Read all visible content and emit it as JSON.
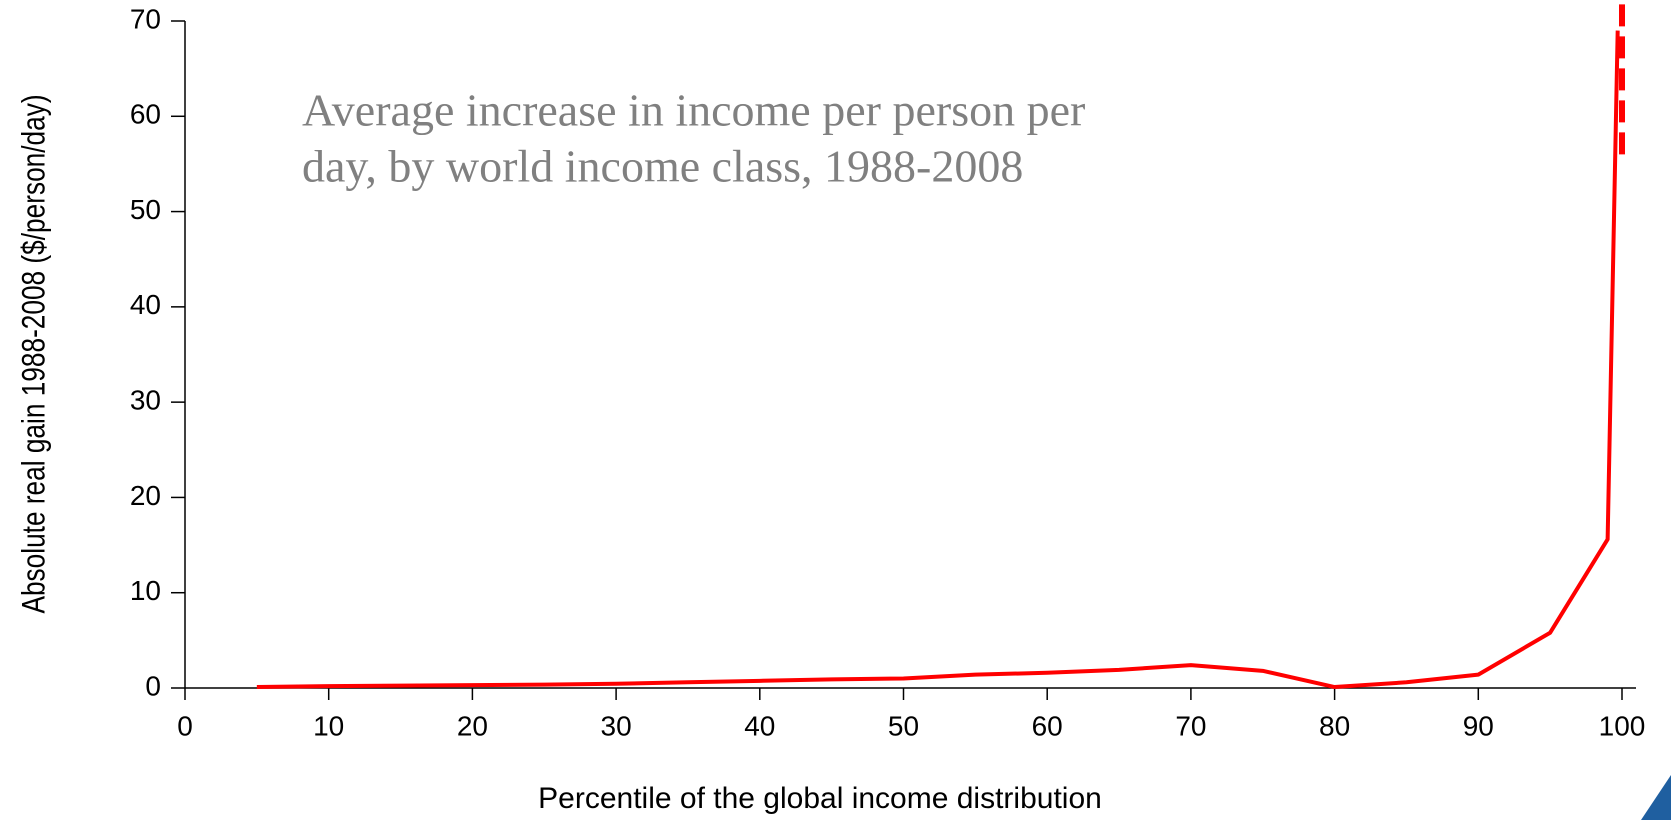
{
  "chart_data": {
    "type": "line",
    "title_lines": [
      "Average increase in income per person per",
      "day, by world income class, 1988-2008"
    ],
    "x_label": "Percentile of the global income distribution",
    "y_label": "Absolute real gain 1988-2008 ($/person/day)",
    "series": [
      {
        "color": "#ff0000",
        "style": "solid",
        "x": [
          5,
          10,
          15,
          20,
          25,
          30,
          35,
          40,
          45,
          50,
          55,
          60,
          65,
          70,
          75,
          80,
          85,
          90,
          95,
          99,
          99.7
        ],
        "values": [
          0.1,
          0.2,
          0.25,
          0.3,
          0.35,
          0.45,
          0.6,
          0.75,
          0.9,
          1.0,
          1.4,
          1.6,
          1.9,
          2.4,
          1.8,
          0.1,
          0.6,
          1.4,
          5.8,
          15.6,
          69
        ]
      },
      {
        "color": "#ff0000",
        "style": "dashed",
        "x": [
          100,
          100
        ],
        "values": [
          56,
          72
        ]
      }
    ],
    "xlim": [
      0,
      100
    ],
    "xticks": [
      0,
      10,
      20,
      30,
      40,
      50,
      60,
      70,
      80,
      90,
      100
    ],
    "ylim": [
      0,
      70
    ],
    "yticks": [
      0,
      10,
      20,
      30,
      40,
      50,
      60,
      70
    ]
  }
}
